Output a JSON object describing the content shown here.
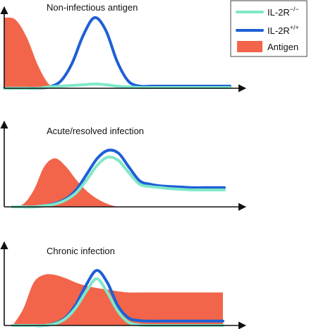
{
  "legend": {
    "entries": [
      {
        "key": "il2r_ko",
        "base": "IL-2R",
        "sup": "−/−",
        "color": "#7ee8c8",
        "kind": "line"
      },
      {
        "key": "il2r_wt",
        "base": "IL-2R",
        "sup": "+/+",
        "color": "#1f5fd6",
        "kind": "line"
      },
      {
        "key": "antigen",
        "base": "Antigen",
        "sup": "",
        "color": "#f2654a",
        "kind": "area"
      }
    ]
  },
  "chart_data": [
    {
      "type": "line",
      "title": "Non-infectious antigen",
      "xlabel": "",
      "ylabel": "",
      "x": [
        0,
        0.05,
        0.1,
        0.15,
        0.2,
        0.25,
        0.3,
        0.35,
        0.4,
        0.45,
        0.5,
        0.55,
        0.6,
        0.65,
        0.7,
        0.75,
        0.8,
        0.85,
        0.9,
        0.95,
        1
      ],
      "ylim": [
        0,
        1
      ],
      "series": [
        {
          "key": "antigen",
          "kind": "area",
          "values": [
            1,
            0.97,
            0.72,
            0.32,
            0.05,
            0,
            0,
            0,
            0,
            0,
            0,
            0,
            0,
            0,
            0,
            0,
            0,
            0,
            0,
            0,
            0
          ]
        },
        {
          "key": "il2r_wt",
          "kind": "line",
          "values": [
            0,
            0,
            0,
            0,
            0.02,
            0.1,
            0.35,
            0.75,
            1,
            0.82,
            0.38,
            0.1,
            0.03,
            0.03,
            0.03,
            0.03,
            0.03,
            0.03,
            0.03,
            0.03,
            0.03
          ]
        },
        {
          "key": "il2r_ko",
          "kind": "line",
          "values": [
            0,
            0,
            0,
            0,
            0.02,
            0.03,
            0.04,
            0.05,
            0.06,
            0.05,
            0.03,
            0.02,
            0.01,
            0.01,
            0.01,
            0.01,
            0.01,
            0.01,
            0.01,
            0.01,
            0.01
          ]
        }
      ]
    },
    {
      "type": "line",
      "title": "Acute/resolved infection",
      "xlabel": "",
      "ylabel": "",
      "x": [
        0,
        0.05,
        0.1,
        0.15,
        0.2,
        0.25,
        0.3,
        0.35,
        0.4,
        0.45,
        0.5,
        0.55,
        0.6,
        0.65,
        0.7,
        0.75,
        0.8,
        0.85,
        0.9,
        0.95,
        1
      ],
      "ylim": [
        0,
        1
      ],
      "series": [
        {
          "key": "antigen",
          "kind": "area",
          "values": [
            0,
            0.05,
            0.3,
            0.72,
            0.86,
            0.72,
            0.48,
            0.28,
            0.14,
            0.05,
            0,
            0,
            0,
            0,
            0,
            0,
            0,
            0,
            0,
            0,
            0
          ]
        },
        {
          "key": "il2r_wt",
          "kind": "line",
          "values": [
            0,
            0,
            0,
            0.02,
            0.06,
            0.14,
            0.3,
            0.58,
            0.86,
            1,
            0.95,
            0.7,
            0.46,
            0.4,
            0.37,
            0.36,
            0.35,
            0.34,
            0.34,
            0.34,
            0.34
          ]
        },
        {
          "key": "il2r_ko",
          "kind": "line",
          "values": [
            0,
            0,
            0,
            0.02,
            0.05,
            0.12,
            0.25,
            0.48,
            0.74,
            0.88,
            0.82,
            0.6,
            0.4,
            0.36,
            0.34,
            0.32,
            0.31,
            0.3,
            0.3,
            0.3,
            0.3
          ]
        }
      ]
    },
    {
      "type": "line",
      "title": "Chronic infection",
      "xlabel": "",
      "ylabel": "",
      "x": [
        0,
        0.05,
        0.1,
        0.15,
        0.2,
        0.25,
        0.3,
        0.35,
        0.4,
        0.45,
        0.5,
        0.55,
        0.6,
        0.65,
        0.7,
        0.75,
        0.8,
        0.85,
        0.9,
        0.95,
        1
      ],
      "ylim": [
        0,
        1
      ],
      "series": [
        {
          "key": "antigen",
          "kind": "area",
          "values": [
            0,
            0.3,
            0.78,
            0.92,
            0.92,
            0.86,
            0.78,
            0.72,
            0.68,
            0.65,
            0.62,
            0.6,
            0.6,
            0.6,
            0.6,
            0.6,
            0.6,
            0.6,
            0.6,
            0.6,
            0.6
          ]
        },
        {
          "key": "il2r_wt",
          "kind": "line",
          "values": [
            0,
            0,
            0,
            0,
            0.04,
            0.14,
            0.38,
            0.74,
            1,
            0.78,
            0.36,
            0.14,
            0.09,
            0.08,
            0.08,
            0.08,
            0.08,
            0.08,
            0.08,
            0.08,
            0.08
          ]
        },
        {
          "key": "il2r_ko",
          "kind": "line",
          "values": [
            0,
            0,
            0,
            0,
            0.03,
            0.12,
            0.32,
            0.62,
            0.85,
            0.6,
            0.26,
            0.06,
            0.01,
            0,
            0,
            0,
            0,
            0,
            0,
            0,
            0
          ]
        }
      ]
    }
  ]
}
